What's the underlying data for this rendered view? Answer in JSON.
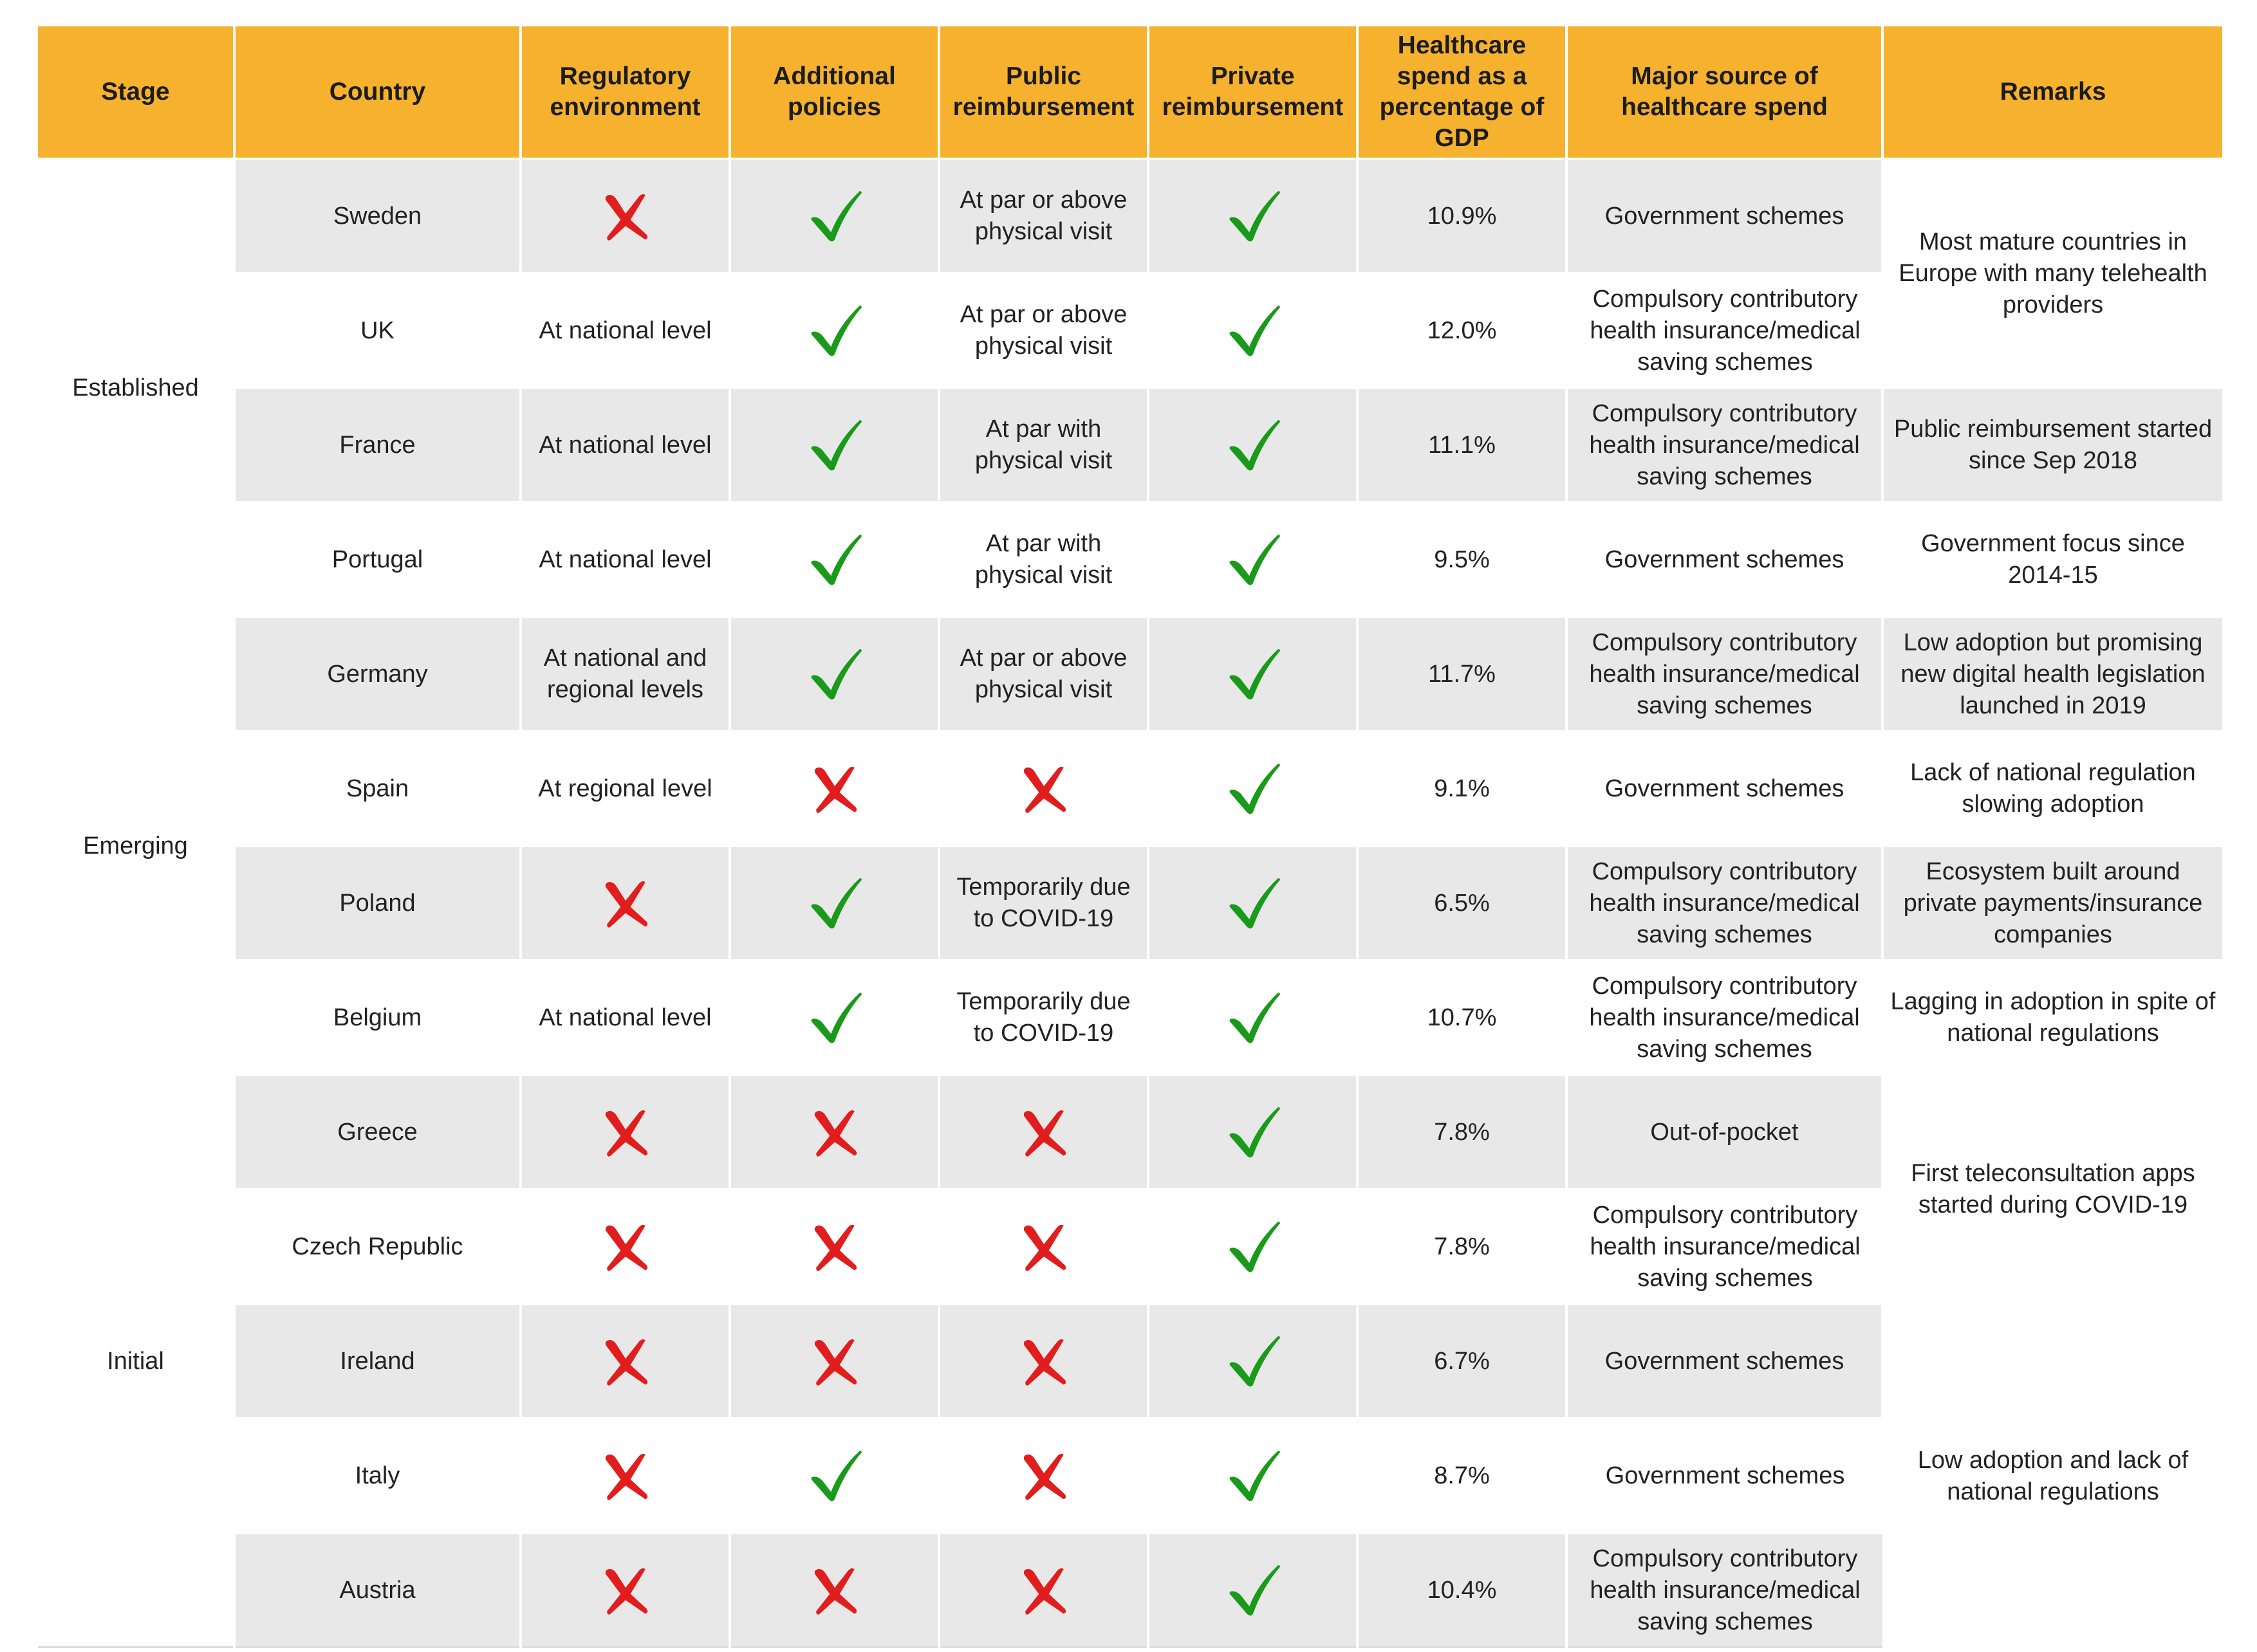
{
  "colors": {
    "header_bg": "#f6b22f",
    "row_shade": "#e8e8e8",
    "check": "#1a9a1a",
    "cross": "#e11d1d"
  },
  "headers": [
    "Stage",
    "Country",
    "Regulatory environment",
    "Additional policies",
    "Public reimbursement",
    "Private reimbursement",
    "Healthcare spend as a percentage of GDP",
    "Major source of healthcare spend",
    "Remarks"
  ],
  "stages": [
    {
      "label": "Established",
      "rows": 4
    },
    {
      "label": "Emerging",
      "rows": 4
    },
    {
      "label": "Initial",
      "rows": 5
    }
  ],
  "rows": [
    {
      "country": "Sweden",
      "regulatory": {
        "mark": "cross"
      },
      "additional": {
        "mark": "check"
      },
      "public": {
        "text": "At par or above physical visit"
      },
      "private": {
        "mark": "check"
      },
      "spend": "10.9%",
      "source": "Government schemes"
    },
    {
      "country": "UK",
      "regulatory": {
        "text": "At national level"
      },
      "additional": {
        "mark": "check"
      },
      "public": {
        "text": "At par or above physical visit"
      },
      "private": {
        "mark": "check"
      },
      "spend": "12.0%",
      "source": "Compulsory contributory health insurance/medical saving schemes"
    },
    {
      "country": "France",
      "regulatory": {
        "text": "At national level"
      },
      "additional": {
        "mark": "check"
      },
      "public": {
        "text": "At par with physical visit"
      },
      "private": {
        "mark": "check"
      },
      "spend": "11.1%",
      "source": "Compulsory contributory health insurance/medical saving schemes"
    },
    {
      "country": "Portugal",
      "regulatory": {
        "text": "At national level"
      },
      "additional": {
        "mark": "check"
      },
      "public": {
        "text": "At par with physical visit"
      },
      "private": {
        "mark": "check"
      },
      "spend": "9.5%",
      "source": "Government schemes"
    },
    {
      "country": "Germany",
      "regulatory": {
        "text": "At national and regional levels"
      },
      "additional": {
        "mark": "check"
      },
      "public": {
        "text": "At par or above physical visit"
      },
      "private": {
        "mark": "check"
      },
      "spend": "11.7%",
      "source": "Compulsory contributory health insurance/medical saving schemes"
    },
    {
      "country": "Spain",
      "regulatory": {
        "text": "At regional level"
      },
      "additional": {
        "mark": "cross"
      },
      "public": {
        "mark": "cross"
      },
      "private": {
        "mark": "check"
      },
      "spend": "9.1%",
      "source": "Government schemes"
    },
    {
      "country": "Poland",
      "regulatory": {
        "mark": "cross"
      },
      "additional": {
        "mark": "check"
      },
      "public": {
        "text": "Temporarily due to COVID-19"
      },
      "private": {
        "mark": "check"
      },
      "spend": "6.5%",
      "source": "Compulsory contributory health insurance/medical saving schemes"
    },
    {
      "country": "Belgium",
      "regulatory": {
        "text": "At national level"
      },
      "additional": {
        "mark": "check"
      },
      "public": {
        "text": "Temporarily due to COVID-19"
      },
      "private": {
        "mark": "check"
      },
      "spend": "10.7%",
      "source": "Compulsory contributory health insurance/medical saving schemes"
    },
    {
      "country": "Greece",
      "regulatory": {
        "mark": "cross"
      },
      "additional": {
        "mark": "cross"
      },
      "public": {
        "mark": "cross"
      },
      "private": {
        "mark": "check"
      },
      "spend": "7.8%",
      "source": "Out-of-pocket"
    },
    {
      "country": "Czech Republic",
      "regulatory": {
        "mark": "cross"
      },
      "additional": {
        "mark": "cross"
      },
      "public": {
        "mark": "cross"
      },
      "private": {
        "mark": "check"
      },
      "spend": "7.8%",
      "source": "Compulsory contributory health insurance/medical saving schemes"
    },
    {
      "country": "Ireland",
      "regulatory": {
        "mark": "cross"
      },
      "additional": {
        "mark": "cross"
      },
      "public": {
        "mark": "cross"
      },
      "private": {
        "mark": "check"
      },
      "spend": "6.7%",
      "source": "Government schemes"
    },
    {
      "country": "Italy",
      "regulatory": {
        "mark": "cross"
      },
      "additional": {
        "mark": "check"
      },
      "public": {
        "mark": "cross"
      },
      "private": {
        "mark": "check"
      },
      "spend": "8.7%",
      "source": "Government schemes"
    },
    {
      "country": "Austria",
      "regulatory": {
        "mark": "cross"
      },
      "additional": {
        "mark": "cross"
      },
      "public": {
        "mark": "cross"
      },
      "private": {
        "mark": "check"
      },
      "spend": "10.4%",
      "source": "Compulsory contributory health insurance/medical saving schemes"
    }
  ],
  "remarks": [
    {
      "text": "Most mature countries in Europe with many telehealth providers",
      "start": 0,
      "span": 2,
      "bg": "plain"
    },
    {
      "text": "Public reimbursement started since Sep 2018",
      "start": 2,
      "span": 1,
      "bg": "shade"
    },
    {
      "text": "Government focus since 2014-15",
      "start": 3,
      "span": 1,
      "bg": "plain"
    },
    {
      "text": "Low adoption but promising new digital health legislation launched in 2019",
      "start": 4,
      "span": 1,
      "bg": "shade"
    },
    {
      "text": "Lack of national regulation slowing adoption",
      "start": 5,
      "span": 1,
      "bg": "plain"
    },
    {
      "text": "Ecosystem built around private payments/insurance companies",
      "start": 6,
      "span": 1,
      "bg": "shade"
    },
    {
      "text": "Lagging in adoption in spite of national regulations",
      "start": 7,
      "span": 1,
      "bg": "plain"
    },
    {
      "text": "First teleconsultation apps started during COVID-19",
      "start": 8,
      "span": 2,
      "bg": "plain"
    },
    {
      "text": "Low adoption and lack of national regulations",
      "start": 10,
      "span": 3,
      "bg": "plain"
    }
  ]
}
